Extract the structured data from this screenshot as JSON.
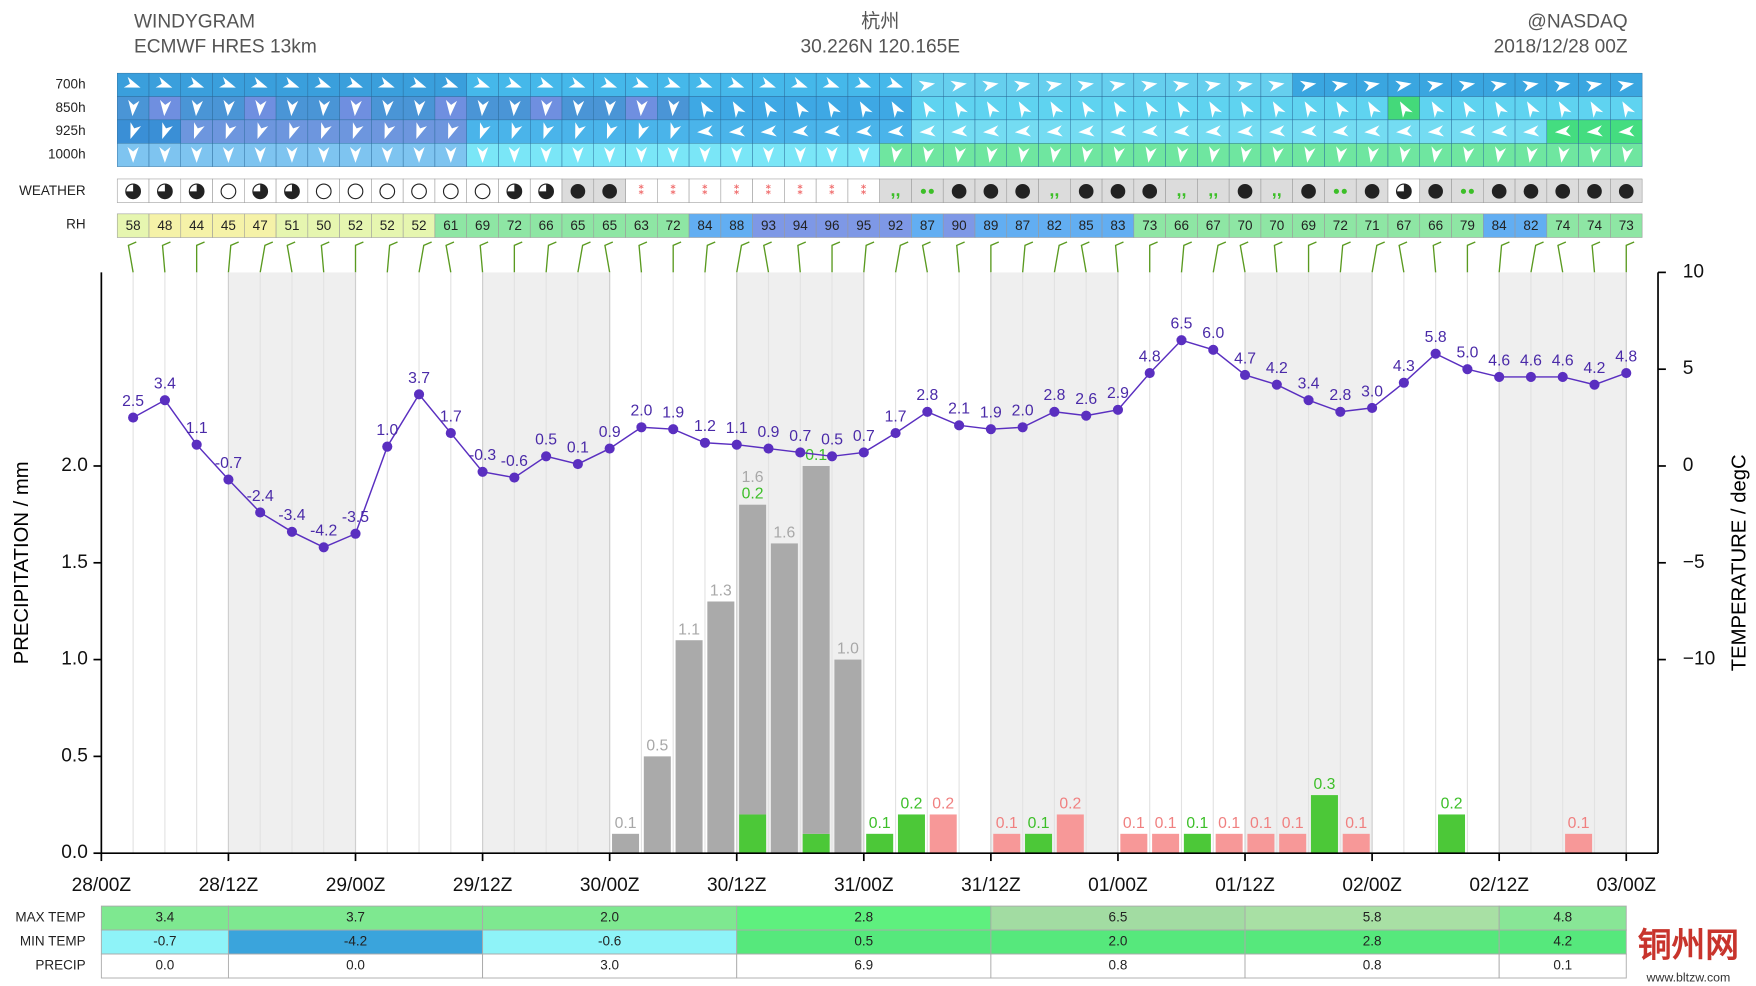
{
  "header": {
    "left_title": "WINDYGRAM",
    "left_subtitle": "ECMWF HRES 13km",
    "center_title": "杭州",
    "center_subtitle": "30.226N 120.165E",
    "right_title": "@NASDAQ",
    "right_subtitle": "2018/12/28 00Z"
  },
  "levels": [
    "700h",
    "850h",
    "925h",
    "1000h"
  ],
  "weather_label": "WEATHER",
  "rh": {
    "label": "RH",
    "values": [
      58,
      48,
      44,
      45,
      47,
      51,
      50,
      52,
      52,
      52,
      61,
      69,
      72,
      66,
      65,
      65,
      63,
      72,
      84,
      88,
      93,
      94,
      96,
      95,
      92,
      87,
      90,
      89,
      87,
      82,
      85,
      83,
      73,
      66,
      67,
      70,
      70,
      69,
      72,
      71,
      67,
      66,
      79,
      84,
      82,
      74,
      74,
      73
    ]
  },
  "chart_data": {
    "type": "windygram",
    "y_label": "PRECIPITATION / mm",
    "y2_label": "TEMPERATURE / degC",
    "x": [
      3,
      6,
      9,
      12,
      15,
      18,
      21,
      24,
      27,
      30,
      33,
      36,
      39,
      42,
      45,
      48,
      51,
      54,
      57,
      60,
      63,
      66,
      69,
      72,
      75,
      78,
      81,
      84,
      87,
      90,
      93,
      96,
      99,
      102,
      105,
      108,
      111,
      114,
      117,
      120,
      123,
      126,
      129,
      132,
      135,
      138,
      141,
      144
    ],
    "xlim": [
      0,
      147
    ],
    "xticks": [
      {
        "value": 0,
        "label": "28/00Z"
      },
      {
        "value": 12,
        "label": "28/12Z"
      },
      {
        "value": 24,
        "label": "29/00Z"
      },
      {
        "value": 36,
        "label": "29/12Z"
      },
      {
        "value": 48,
        "label": "30/00Z"
      },
      {
        "value": 60,
        "label": "30/12Z"
      },
      {
        "value": 72,
        "label": "31/00Z"
      },
      {
        "value": 84,
        "label": "31/12Z"
      },
      {
        "value": 96,
        "label": "01/00Z"
      },
      {
        "value": 108,
        "label": "01/12Z"
      },
      {
        "value": 120,
        "label": "02/00Z"
      },
      {
        "value": 132,
        "label": "02/12Z"
      },
      {
        "value": 144,
        "label": "03/00Z"
      }
    ],
    "ylim": [
      0,
      3
    ],
    "yticks": [
      {
        "value": 0,
        "label": "0.0"
      },
      0.5,
      {
        "value": 1,
        "label": "1.0"
      },
      1.5,
      {
        "value": 2,
        "label": "2.0"
      }
    ],
    "y2lim": [
      -20,
      10
    ],
    "y2ticks": [
      {
        "value": -10,
        "label": "−10"
      },
      {
        "value": -5,
        "label": "−5"
      },
      0,
      5,
      10
    ],
    "series": [
      {
        "color": "#4cc838",
        "label_color": "#3cbf28",
        "values": [
          0,
          0,
          0,
          0,
          0,
          0,
          0,
          0,
          0,
          0,
          0,
          0,
          0,
          0,
          0,
          0,
          0,
          0,
          0,
          0,
          0.2,
          0,
          0.1,
          0,
          0.1,
          0.2,
          0,
          0,
          0,
          0.1,
          0,
          0,
          0,
          0,
          0.1,
          0,
          0,
          0,
          0.3,
          0,
          0,
          0,
          0.2,
          0,
          0,
          0,
          0,
          0
        ],
        "value_labels": [
          null,
          null,
          null,
          null,
          null,
          null,
          null,
          null,
          null,
          null,
          null,
          null,
          null,
          null,
          null,
          null,
          null,
          null,
          null,
          null,
          "0.2",
          null,
          "0.1",
          null,
          "0.1",
          "0.2",
          null,
          null,
          null,
          "0.1",
          null,
          null,
          null,
          null,
          "0.1",
          null,
          null,
          null,
          "0.3",
          null,
          null,
          null,
          "0.2",
          null,
          null,
          null,
          null,
          null
        ]
      },
      {
        "color": "#f79898",
        "label_color": "#f08080",
        "values": [
          0,
          0,
          0,
          0,
          0,
          0,
          0,
          0,
          0,
          0,
          0,
          0,
          0,
          0,
          0,
          0,
          0,
          0,
          0,
          0,
          0,
          0,
          0,
          0,
          0,
          0,
          0.2,
          0,
          0.1,
          0,
          0.2,
          0,
          0.1,
          0.1,
          0,
          0.1,
          0.1,
          0.1,
          0,
          0.1,
          0,
          0,
          0,
          0,
          0,
          0,
          0.1,
          0
        ],
        "value_labels": [
          null,
          null,
          null,
          null,
          null,
          null,
          null,
          null,
          null,
          null,
          null,
          null,
          null,
          null,
          null,
          null,
          null,
          null,
          null,
          null,
          null,
          null,
          null,
          null,
          null,
          null,
          "0.2",
          null,
          "0.1",
          null,
          "0.2",
          null,
          "0.1",
          "0.1",
          null,
          "0.1",
          "0.1",
          "0.1",
          null,
          "0.1",
          null,
          null,
          null,
          null,
          null,
          null,
          "0.1",
          null
        ]
      },
      {
        "color": "#aaaaaa",
        "label_color": "#a8a8a8",
        "values": [
          0,
          0,
          0,
          0,
          0,
          0,
          0,
          0,
          0,
          0,
          0,
          0,
          0,
          0,
          0,
          0,
          0.1,
          0.5,
          1.1,
          1.3,
          1.6,
          1.6,
          1.9,
          1.0,
          0,
          0,
          0,
          0,
          0,
          0,
          0,
          0,
          0,
          0,
          0,
          0,
          0,
          0,
          0,
          0,
          0,
          0,
          0,
          0,
          0,
          0,
          0,
          0
        ],
        "value_labels": [
          null,
          null,
          null,
          null,
          null,
          null,
          null,
          null,
          null,
          null,
          null,
          null,
          null,
          null,
          null,
          null,
          "0.1",
          "0.5",
          "1.1",
          "1.3",
          "1.6",
          "1.6",
          null,
          "1.0",
          null,
          null,
          null,
          null,
          null,
          null,
          null,
          null,
          null,
          null,
          null,
          null,
          null,
          null,
          null,
          null,
          null,
          null,
          null,
          null,
          null,
          null,
          null,
          null
        ]
      },
      {
        "axis": "y2",
        "color": "#5a2fc0",
        "label_color": "#4a2aa8",
        "values": [
          2.5,
          3.4,
          1.1,
          -0.7,
          -2.4,
          -3.4,
          -4.2,
          -3.5,
          1.0,
          3.7,
          1.7,
          -0.3,
          -0.6,
          0.5,
          0.1,
          0.9,
          2.0,
          1.9,
          1.2,
          1.1,
          0.9,
          0.7,
          0.5,
          0.7,
          1.7,
          2.8,
          2.1,
          1.9,
          2.0,
          2.8,
          2.6,
          2.9,
          4.8,
          6.5,
          6.0,
          4.7,
          4.2,
          3.4,
          2.8,
          3.0,
          4.3,
          5.8,
          5.0,
          4.6,
          4.6,
          4.6,
          4.2,
          4.8
        ],
        "value_labels": [
          "2.5",
          "3.4",
          "1.1",
          "-0.7",
          "-2.4",
          "-3.4",
          "-4.2",
          "-3.5",
          "1.0",
          "3.7",
          "1.7",
          "-0.3",
          "-0.6",
          "0.5",
          "0.1",
          "0.9",
          "2.0",
          "1.9",
          "1.2",
          "1.1",
          "0.9",
          "0.7",
          "0.5",
          "0.7",
          "1.7",
          "2.8",
          "2.1",
          "1.9",
          "2.0",
          "2.8",
          "2.6",
          "2.9",
          "4.8",
          "6.5",
          "6.0",
          "4.7",
          "4.2",
          "3.4",
          "2.8",
          "3.0",
          "4.3",
          "5.8",
          "5.0",
          "4.6",
          "4.6",
          "4.6",
          "4.2",
          "4.8"
        ]
      }
    ]
  },
  "table": {
    "rows": [
      {
        "label": "MAX TEMP",
        "values": [
          "3.4",
          "3.7",
          "2.0",
          "2.8",
          "6.5",
          "5.8",
          "4.8"
        ],
        "colors": [
          "#7ee890",
          "#7ee890",
          "#7ee890",
          "#5ef07e",
          "#a2dca2",
          "#a8e0a4",
          "#88e696"
        ]
      },
      {
        "label": "MIN TEMP",
        "values": [
          "-0.7",
          "-4.2",
          "-0.6",
          "0.5",
          "2.0",
          "2.8",
          "4.2"
        ],
        "colors": [
          "#8ef3f8",
          "#3aa4dc",
          "#8ef3f8",
          "#56e87c",
          "#56e87c",
          "#56e87c",
          "#56e87c"
        ]
      },
      {
        "label": "PRECIP",
        "values": [
          "0.0",
          "0.0",
          "3.0",
          "6.9",
          "0.8",
          "0.8",
          "0.1"
        ],
        "colors": [
          "#ffffff",
          "#ffffff",
          "#ffffff",
          "#ffffff",
          "#ffffff",
          "#ffffff",
          "#ffffff"
        ]
      }
    ]
  },
  "watermark": {
    "title": "铜州网",
    "url": "www.bltzw.com"
  }
}
